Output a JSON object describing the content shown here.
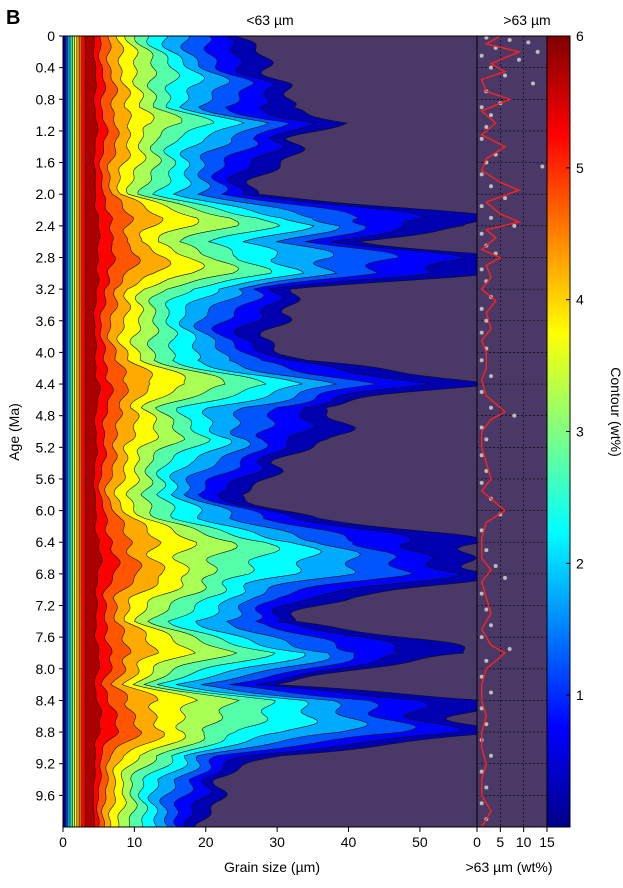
{
  "panel_label": "B",
  "chart_data": [
    {
      "type": "heatmap",
      "panel": "B",
      "title": "<63 µm",
      "xlabel": "Grain size (µm)",
      "ylabel": "Age (Ma)",
      "xlim": [
        0,
        58
      ],
      "ylim": [
        0,
        10
      ],
      "y_inverted": true,
      "x_ticks": [
        0,
        10,
        20,
        30,
        40,
        50
      ],
      "y_ticks": [
        0,
        0.4,
        0.8,
        1.2,
        1.6,
        2.0,
        2.4,
        2.8,
        3.2,
        3.6,
        4.0,
        4.4,
        4.8,
        5.2,
        5.6,
        6.0,
        6.4,
        6.8,
        7.2,
        7.6,
        8.0,
        8.4,
        8.8,
        9.2,
        9.6
      ],
      "y_tick_labels": [
        "0",
        "0.4",
        "0.8",
        "1.2",
        "1.6",
        "2.0",
        "2.4",
        "2.8",
        "3.2",
        "3.6",
        "4.0",
        "4.4",
        "4.8",
        "5.2",
        "5.6",
        "6.0",
        "6.4",
        "6.8",
        "7.2",
        "7.6",
        "8.0",
        "8.4",
        "8.8",
        "9.2",
        "9.6"
      ],
      "contour_levels": [
        0,
        0.5,
        1,
        1.5,
        2,
        2.5,
        3,
        3.5,
        4,
        4.5,
        5,
        5.5,
        6
      ],
      "mode_grain_size_um": 4,
      "zero_contour_extent_by_age": [
        [
          0.0,
          24
        ],
        [
          0.3,
          28
        ],
        [
          0.6,
          32
        ],
        [
          0.9,
          30
        ],
        [
          1.1,
          41
        ],
        [
          1.3,
          33
        ],
        [
          1.7,
          29
        ],
        [
          2.0,
          27
        ],
        [
          2.3,
          59
        ],
        [
          2.4,
          59
        ],
        [
          2.6,
          44
        ],
        [
          2.8,
          59
        ],
        [
          3.0,
          59
        ],
        [
          3.2,
          35
        ],
        [
          3.5,
          30
        ],
        [
          3.8,
          29
        ],
        [
          4.1,
          33
        ],
        [
          4.4,
          59
        ],
        [
          4.7,
          36
        ],
        [
          5.1,
          39
        ],
        [
          5.4,
          30
        ],
        [
          5.8,
          25
        ],
        [
          6.1,
          35
        ],
        [
          6.4,
          59
        ],
        [
          6.8,
          59
        ],
        [
          7.1,
          40
        ],
        [
          7.4,
          32
        ],
        [
          7.8,
          59
        ],
        [
          8.2,
          28
        ],
        [
          8.4,
          59
        ],
        [
          8.8,
          59
        ],
        [
          9.1,
          30
        ],
        [
          9.4,
          22
        ],
        [
          9.7,
          21
        ],
        [
          10.0,
          20
        ]
      ]
    },
    {
      "type": "line",
      "panel": "B",
      "title": ">63 µm",
      "xlabel": ">63 µm (wt%)",
      "xlim": [
        0,
        15
      ],
      "ylim": [
        0,
        10
      ],
      "y_inverted": true,
      "x_ticks": [
        0,
        5,
        10,
        15
      ],
      "series": [
        {
          "values": [
            [
              0.0,
              5
            ],
            [
              0.1,
              2
            ],
            [
              0.2,
              9
            ],
            [
              0.35,
              3
            ],
            [
              0.45,
              6
            ],
            [
              0.55,
              1
            ],
            [
              0.7,
              2
            ],
            [
              0.8,
              7
            ],
            [
              0.95,
              1
            ],
            [
              1.1,
              4
            ],
            [
              1.25,
              1
            ],
            [
              1.4,
              6
            ],
            [
              1.55,
              2
            ],
            [
              1.7,
              1
            ],
            [
              1.85,
              5
            ],
            [
              1.95,
              9
            ],
            [
              2.1,
              2
            ],
            [
              2.25,
              5
            ],
            [
              2.35,
              9
            ],
            [
              2.45,
              2
            ],
            [
              2.55,
              4
            ],
            [
              2.7,
              1
            ],
            [
              2.8,
              5
            ],
            [
              2.9,
              2
            ],
            [
              3.05,
              3
            ],
            [
              3.2,
              1
            ],
            [
              3.35,
              4
            ],
            [
              3.5,
              2
            ],
            [
              3.7,
              3
            ],
            [
              3.85,
              1
            ],
            [
              4.0,
              2
            ],
            [
              4.2,
              2
            ],
            [
              4.35,
              1
            ],
            [
              4.55,
              2
            ],
            [
              4.65,
              4
            ],
            [
              4.75,
              6
            ],
            [
              4.85,
              3
            ],
            [
              5.0,
              1
            ],
            [
              5.2,
              1
            ],
            [
              5.4,
              2
            ],
            [
              5.6,
              3
            ],
            [
              5.75,
              1
            ],
            [
              5.9,
              4
            ],
            [
              6.0,
              6
            ],
            [
              6.15,
              2
            ],
            [
              6.35,
              1
            ],
            [
              6.6,
              1
            ],
            [
              6.75,
              3
            ],
            [
              6.9,
              1
            ],
            [
              7.1,
              2
            ],
            [
              7.3,
              3
            ],
            [
              7.5,
              1
            ],
            [
              7.7,
              3
            ],
            [
              7.8,
              6
            ],
            [
              8.0,
              2
            ],
            [
              8.2,
              1
            ],
            [
              8.4,
              1
            ],
            [
              8.6,
              2
            ],
            [
              8.8,
              1
            ],
            [
              9.0,
              1
            ],
            [
              9.2,
              2
            ],
            [
              9.4,
              1
            ],
            [
              9.6,
              1
            ],
            [
              9.8,
              3
            ],
            [
              10.0,
              1
            ]
          ]
        }
      ],
      "scatter_points": [
        [
          0.02,
          2
        ],
        [
          0.05,
          7
        ],
        [
          0.08,
          11
        ],
        [
          0.15,
          4
        ],
        [
          0.2,
          13
        ],
        [
          0.25,
          1
        ],
        [
          0.3,
          9
        ],
        [
          0.4,
          3
        ],
        [
          0.5,
          6
        ],
        [
          0.6,
          12
        ],
        [
          0.7,
          2
        ],
        [
          0.85,
          5
        ],
        [
          0.9,
          1
        ],
        [
          1.0,
          3
        ],
        [
          1.15,
          2
        ],
        [
          1.3,
          1
        ],
        [
          1.5,
          4
        ],
        [
          1.6,
          2
        ],
        [
          1.65,
          14
        ],
        [
          1.75,
          1
        ],
        [
          1.9,
          3
        ],
        [
          2.05,
          6
        ],
        [
          2.15,
          1
        ],
        [
          2.3,
          3
        ],
        [
          2.4,
          8
        ],
        [
          2.5,
          1
        ],
        [
          2.65,
          2
        ],
        [
          2.75,
          4
        ],
        [
          2.95,
          1
        ],
        [
          3.1,
          2
        ],
        [
          3.3,
          3
        ],
        [
          3.45,
          1
        ],
        [
          3.6,
          2
        ],
        [
          3.75,
          1
        ],
        [
          3.95,
          2
        ],
        [
          4.1,
          1
        ],
        [
          4.3,
          3
        ],
        [
          4.5,
          1
        ],
        [
          4.7,
          3
        ],
        [
          4.8,
          8
        ],
        [
          4.95,
          1
        ],
        [
          5.1,
          2
        ],
        [
          5.3,
          1
        ],
        [
          5.5,
          2
        ],
        [
          5.65,
          1
        ],
        [
          5.85,
          3
        ],
        [
          6.05,
          5
        ],
        [
          6.25,
          1
        ],
        [
          6.5,
          2
        ],
        [
          6.7,
          4
        ],
        [
          6.85,
          6
        ],
        [
          7.05,
          1
        ],
        [
          7.25,
          2
        ],
        [
          7.45,
          3
        ],
        [
          7.6,
          1
        ],
        [
          7.75,
          7
        ],
        [
          7.9,
          2
        ],
        [
          8.1,
          1
        ],
        [
          8.3,
          3
        ],
        [
          8.5,
          1
        ],
        [
          8.7,
          2
        ],
        [
          8.9,
          1
        ],
        [
          9.1,
          3
        ],
        [
          9.3,
          1
        ],
        [
          9.5,
          2
        ],
        [
          9.7,
          1
        ],
        [
          9.9,
          2
        ]
      ]
    },
    {
      "type": "colorbar",
      "panel": "B",
      "ylabel": "Contour (wt%)",
      "ylim": [
        0,
        6
      ],
      "ticks": [
        1,
        2,
        3,
        4,
        5,
        6
      ],
      "colormap": [
        "#000088",
        "#0000ff",
        "#0080ff",
        "#00ffff",
        "#80ff80",
        "#ffff00",
        "#ff8000",
        "#ff0000",
        "#800000"
      ]
    }
  ]
}
